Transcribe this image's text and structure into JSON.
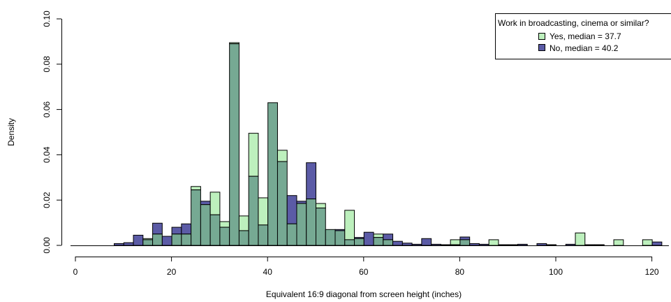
{
  "chart_data": {
    "type": "bar",
    "title": "",
    "xlabel": "Equivalent 16:9 diagonal from screen height (inches)",
    "ylabel": "Density",
    "xlim": [
      -2,
      124
    ],
    "ylim": [
      0,
      0.1
    ],
    "x_ticks": [
      "0",
      "20",
      "40",
      "60",
      "80",
      "100",
      "120"
    ],
    "y_ticks": [
      "0.00",
      "0.02",
      "0.04",
      "0.06",
      "0.08",
      "0.10"
    ],
    "bin_width": 2,
    "grid": false,
    "legend": {
      "title": "Work in broadcasting, cinema or similar?",
      "placement": "top-right",
      "entries": [
        "Yes, median = 37.7",
        "No, median = 40.2"
      ]
    },
    "colors": {
      "yes": "#bdf0bd",
      "no": "#5b5ba6",
      "overlap": "#76a993",
      "outline": "#000000"
    },
    "bins": [
      6,
      8,
      10,
      12,
      14,
      16,
      18,
      20,
      22,
      24,
      26,
      28,
      30,
      32,
      34,
      36,
      38,
      40,
      42,
      44,
      46,
      48,
      50,
      52,
      54,
      56,
      58,
      60,
      62,
      64,
      66,
      68,
      70,
      72,
      74,
      76,
      78,
      80,
      82,
      84,
      86,
      88,
      90,
      92,
      94,
      96,
      98,
      100,
      102,
      104,
      106,
      108,
      110,
      112,
      114,
      116,
      118,
      120
    ],
    "series": [
      {
        "name": "Yes, median = 37.7",
        "values": [
          0,
          0,
          0,
          0,
          0.003,
          0.005,
          0,
          0.005,
          0.005,
          0.026,
          0.018,
          0.0235,
          0.0105,
          0.0895,
          0.013,
          0.0495,
          0.021,
          0.063,
          0.042,
          0.0095,
          0.0185,
          0.0205,
          0.0185,
          0.007,
          0.0065,
          0.0155,
          0.003,
          0,
          0.005,
          0.0025,
          0,
          0,
          0,
          0,
          0,
          0,
          0.0025,
          0.0025,
          0,
          0,
          0.0025,
          0,
          0,
          0,
          0,
          0,
          0,
          0,
          0,
          0.0055,
          0,
          0,
          0,
          0.0025,
          0,
          0,
          0.0025,
          0
        ]
      },
      {
        "name": "No, median = 40.2",
        "values": [
          0,
          0.0008,
          0.0012,
          0.0045,
          0.0025,
          0.0098,
          0.004,
          0.008,
          0.0095,
          0.0245,
          0.0195,
          0.0135,
          0.008,
          0.089,
          0.0065,
          0.0305,
          0.009,
          0.063,
          0.037,
          0.022,
          0.0195,
          0.0365,
          0.0165,
          0.007,
          0.007,
          0.0025,
          0.0035,
          0.0058,
          0.0035,
          0.005,
          0.0018,
          0.001,
          0.0005,
          0.003,
          0.0005,
          0.0003,
          0.0003,
          0.0037,
          0.0008,
          0.0005,
          0,
          0.0003,
          0.0003,
          0.0005,
          0,
          0.0008,
          0.0003,
          0,
          0.0005,
          0,
          0.0003,
          0.0003,
          0,
          0,
          0,
          0,
          0,
          0.0015
        ]
      }
    ]
  }
}
